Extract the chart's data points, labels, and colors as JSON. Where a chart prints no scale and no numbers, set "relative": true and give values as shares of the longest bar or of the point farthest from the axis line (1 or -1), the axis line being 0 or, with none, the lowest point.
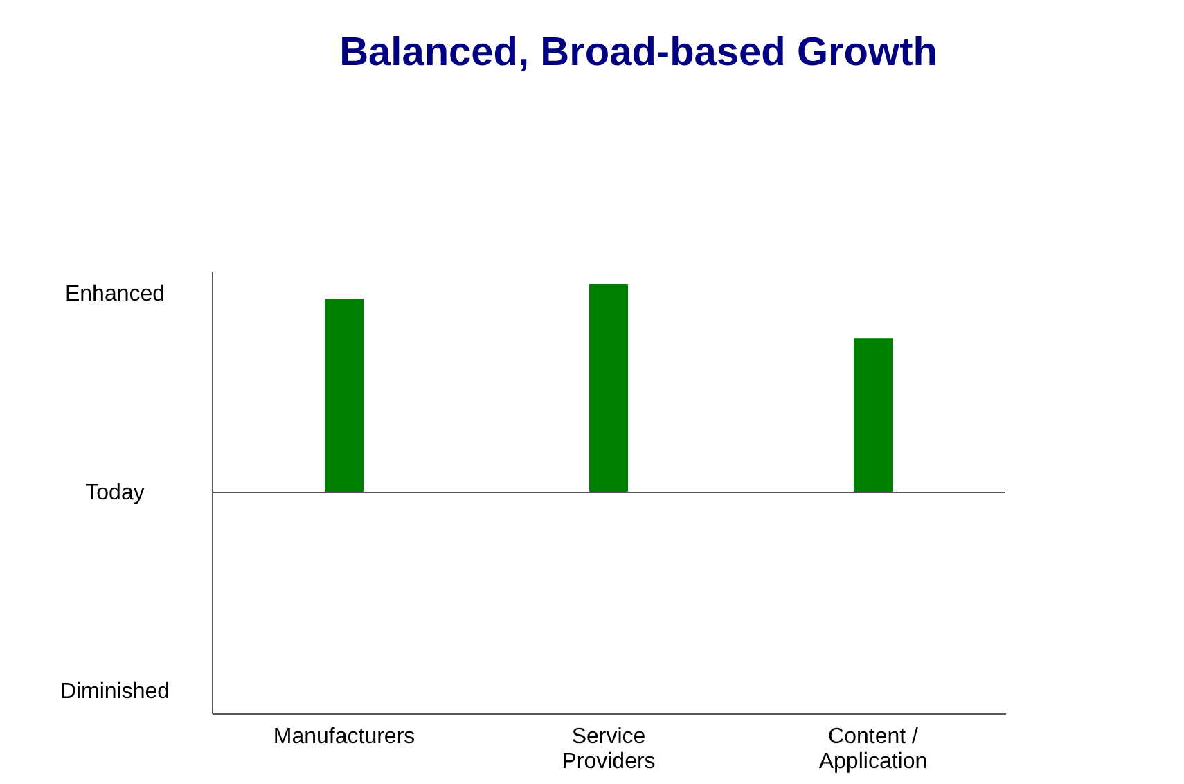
{
  "chart_data": {
    "type": "bar",
    "title": "Balanced, Broad-based Growth",
    "relative": true,
    "categories": [
      "Manufacturers",
      "Service\nProviders",
      "Content /\nApplication"
    ],
    "values": [
      0.93,
      1,
      0.74
    ],
    "color": "#008000",
    "grid": false,
    "annotations": [
      "Enhanced",
      "Today",
      "Diminished"
    ]
  }
}
